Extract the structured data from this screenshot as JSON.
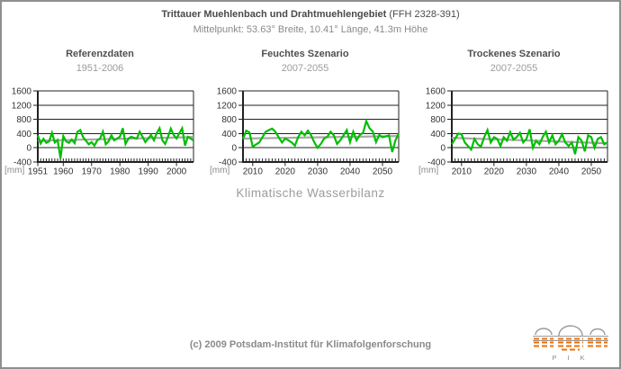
{
  "window": {
    "border_color": "#8f8f8f",
    "background": "#ffffff"
  },
  "header": {
    "title_bold": "Trittauer Muehlenbach und Drahtmuehlengebiet",
    "title_suffix": " (FFH 2328-391)",
    "subtitle": "Mittelpunkt: 53.63° Breite, 10.41° Länge, 41.3m Höhe"
  },
  "caption": "Klimatische Wasserbilanz",
  "footer": {
    "copyright": "(c) 2009 Potsdam-Institut für Klimafolgenforschung"
  },
  "logo": {
    "label": "P I K",
    "orange": "#EE6F0A",
    "gray": "#9a9a9a"
  },
  "colors": {
    "series_green": "#00BE00",
    "trend_gray": "#a8a8a8",
    "trend_dark": "#555555",
    "axis": "#222222",
    "tick_text": "#333333",
    "unit_text": "#8a8a8a"
  },
  "chart_data": [
    {
      "type": "line",
      "title": "Referenzdaten",
      "subtitle": "1951-2006",
      "ylabel": "[mm]",
      "ylim": [
        -400,
        1600
      ],
      "yticks": [
        1600,
        1200,
        800,
        400,
        0,
        -400
      ],
      "x_range": [
        1951,
        2006
      ],
      "xticks": [
        1951,
        1960,
        1970,
        1980,
        1990,
        2000
      ],
      "values": [
        350,
        120,
        250,
        140,
        180,
        420,
        150,
        220,
        -300,
        330,
        180,
        140,
        230,
        130,
        450,
        500,
        300,
        200,
        100,
        160,
        60,
        210,
        260,
        450,
        100,
        180,
        350,
        210,
        260,
        310,
        550,
        110,
        260,
        310,
        280,
        260,
        450,
        310,
        160,
        260,
        360,
        210,
        410,
        550,
        210,
        110,
        310,
        540,
        360,
        260,
        410,
        550,
        60,
        310,
        260,
        210
      ],
      "trend_dark": [
        185,
        315
      ],
      "trend_gray": [
        200,
        300
      ]
    },
    {
      "type": "line",
      "title": "Feuchtes Szenario",
      "subtitle": "2007-2055",
      "ylabel": "[mm]",
      "ylim": [
        -400,
        1600
      ],
      "yticks": [
        1600,
        1200,
        800,
        400,
        0,
        -400
      ],
      "x_range": [
        2007,
        2055
      ],
      "xticks": [
        2010,
        2020,
        2030,
        2040,
        2050
      ],
      "values": [
        250,
        480,
        430,
        30,
        90,
        150,
        300,
        450,
        500,
        540,
        450,
        300,
        150,
        260,
        210,
        150,
        60,
        300,
        450,
        350,
        480,
        350,
        150,
        0,
        110,
        260,
        310,
        450,
        350,
        110,
        210,
        350,
        500,
        160,
        450,
        210,
        360,
        420,
        750,
        550,
        460,
        160,
        360,
        300,
        320,
        350,
        -120,
        210,
        400
      ],
      "trend_dark": [
        250,
        340
      ],
      "trend_gray": [
        260,
        330
      ]
    },
    {
      "type": "line",
      "title": "Trockenes Szenario",
      "subtitle": "2007-2055",
      "ylabel": "[mm]",
      "ylim": [
        -400,
        1600
      ],
      "yticks": [
        1600,
        1200,
        800,
        400,
        0,
        -400
      ],
      "x_range": [
        2007,
        2055
      ],
      "xticks": [
        2010,
        2020,
        2030,
        2040,
        2050
      ],
      "values": [
        100,
        250,
        400,
        380,
        150,
        50,
        -50,
        250,
        100,
        30,
        300,
        500,
        150,
        300,
        250,
        50,
        300,
        200,
        440,
        230,
        300,
        420,
        150,
        250,
        520,
        0,
        200,
        100,
        300,
        450,
        150,
        350,
        100,
        200,
        380,
        150,
        50,
        150,
        -180,
        300,
        200,
        -100,
        350,
        300,
        0,
        250,
        300,
        100,
        150
      ],
      "trend_dark": [
        290,
        110
      ],
      "trend_gray": [
        280,
        130
      ]
    }
  ]
}
